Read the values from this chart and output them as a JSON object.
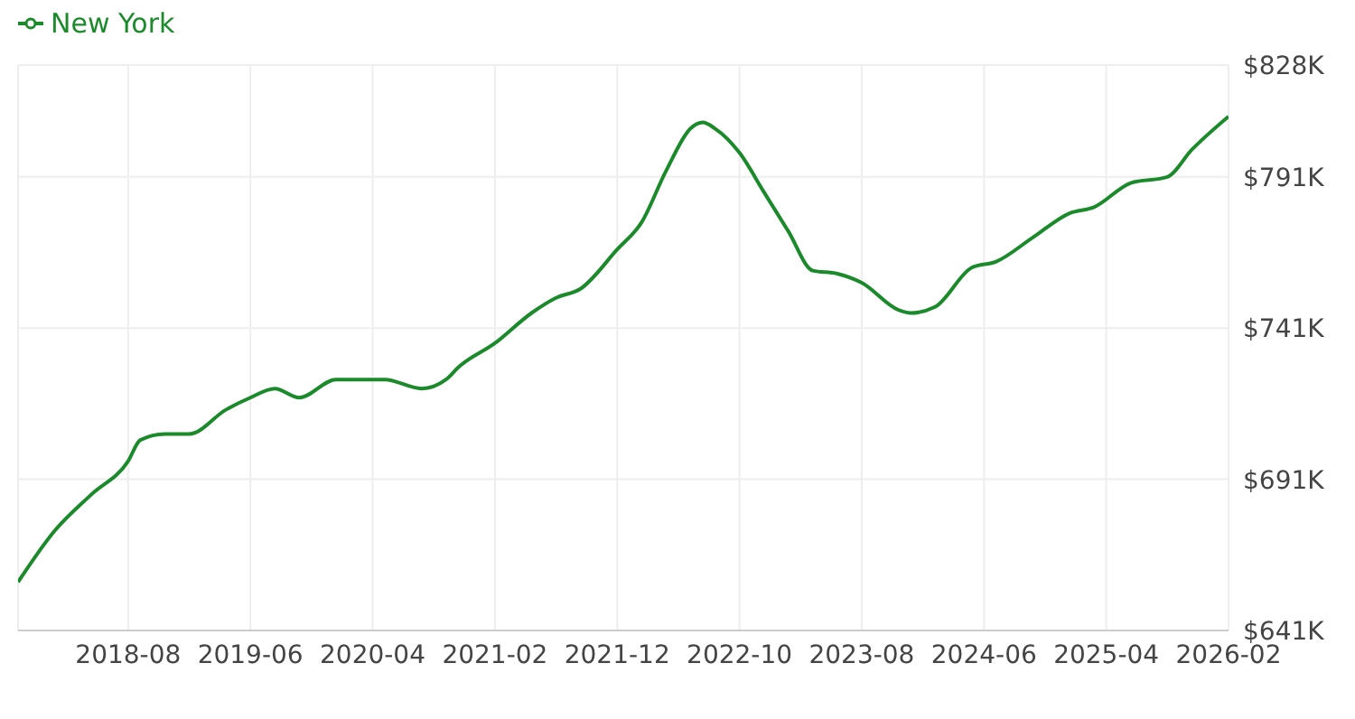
{
  "chart_data": {
    "type": "line",
    "x": [
      "2017-11",
      "2018-02",
      "2018-05",
      "2018-08",
      "2018-09",
      "2018-11",
      "2019-01",
      "2019-04",
      "2019-06",
      "2019-08",
      "2019-10",
      "2020-01",
      "2020-04",
      "2020-05",
      "2020-08",
      "2020-10",
      "2020-11",
      "2021-02",
      "2021-05",
      "2021-07",
      "2021-09",
      "2021-12",
      "2022-02",
      "2022-04",
      "2022-06",
      "2022-07",
      "2022-08",
      "2022-10",
      "2022-12",
      "2023-02",
      "2023-04",
      "2023-06",
      "2023-08",
      "2023-11",
      "2023-12",
      "2024-02",
      "2024-05",
      "2024-07",
      "2024-10",
      "2025-01",
      "2025-03",
      "2025-06",
      "2025-09",
      "2025-11",
      "2026-02"
    ],
    "series": [
      {
        "name": "New York",
        "color": "#1a8a2a",
        "values": [
          657,
          674,
          686,
          697,
          704,
          706,
          706,
          714,
          718,
          721,
          718,
          724,
          724,
          724,
          721,
          724,
          728,
          736,
          746,
          751,
          754,
          767,
          776,
          793,
          807,
          809,
          807,
          799,
          786,
          773,
          760,
          759,
          756,
          747,
          746,
          748,
          761,
          763,
          771,
          779,
          781,
          789,
          791,
          800,
          811
        ]
      }
    ],
    "xlim": [
      "2017-11",
      "2026-02"
    ],
    "xticks": [
      "2018-08",
      "2019-06",
      "2020-04",
      "2021-02",
      "2021-12",
      "2022-10",
      "2023-08",
      "2024-06",
      "2025-04",
      "2026-02"
    ],
    "ylim": [
      641,
      828
    ],
    "yticks": [
      {
        "value": 641,
        "label": "$641K"
      },
      {
        "value": 691,
        "label": "$691K"
      },
      {
        "value": 741,
        "label": "$741K"
      },
      {
        "value": 791,
        "label": "$791K"
      },
      {
        "value": 828,
        "label": "$828K"
      }
    ],
    "grid": true,
    "legend": "top left",
    "marker": "none",
    "line_style": "solid"
  }
}
